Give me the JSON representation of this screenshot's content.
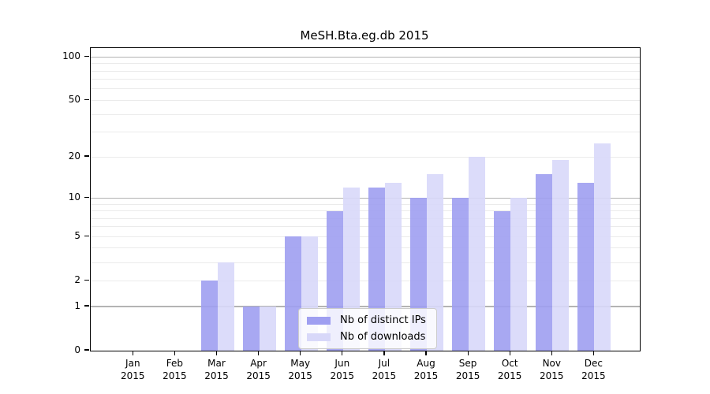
{
  "chart_data": {
    "type": "bar",
    "title": "MeSH.Bta.eg.db 2015",
    "categories": [
      "Jan 2015",
      "Feb 2015",
      "Mar 2015",
      "Apr 2015",
      "May 2015",
      "Jun 2015",
      "Jul 2015",
      "Aug 2015",
      "Sep 2015",
      "Oct 2015",
      "Nov 2015",
      "Dec 2015"
    ],
    "series": [
      {
        "name": "Nb of distinct IPs",
        "color": "#9f9ff1",
        "values": [
          0,
          0,
          2,
          1,
          5,
          8,
          12,
          10,
          10,
          8,
          15,
          13
        ]
      },
      {
        "name": "Nb of downloads",
        "color": "#d8d8f9",
        "values": [
          0,
          0,
          3,
          1,
          5,
          12,
          13,
          15,
          20,
          10,
          19,
          25
        ]
      }
    ],
    "xlabel": "",
    "ylabel": "",
    "y_axis": {
      "scale": "log10(1+x)",
      "ticks": [
        0,
        1,
        2,
        5,
        10,
        20,
        50,
        100
      ],
      "range": [
        0,
        115
      ],
      "grid_major": [
        1,
        10,
        100
      ],
      "grid_minor": [
        2,
        3,
        4,
        5,
        6,
        7,
        8,
        9,
        20,
        30,
        40,
        50,
        60,
        70,
        80,
        90
      ]
    },
    "legend": {
      "position": "bottom-center",
      "entries": [
        "Nb of distinct IPs",
        "Nb of downloads"
      ]
    },
    "grid": "on"
  }
}
